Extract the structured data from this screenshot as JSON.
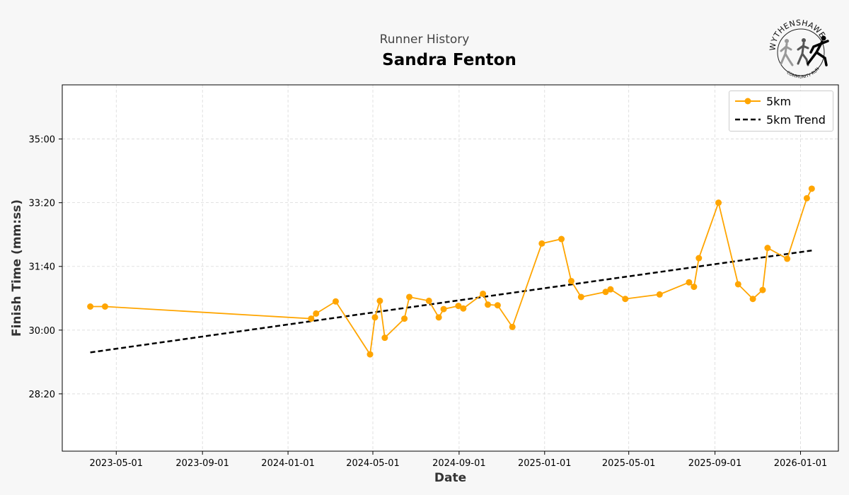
{
  "header": {
    "subtitle": "Runner History",
    "title": "Sandra Fenton"
  },
  "logo": {
    "name": "WYTHENSHAWE",
    "sub": "COMMUNITY RUN"
  },
  "colors": {
    "series": "#ffa500",
    "trend": "#000000",
    "background": "#f7f7f7",
    "plot_bg": "#ffffff"
  },
  "chart_data": {
    "type": "line",
    "xlabel": "Date",
    "ylabel": "Finish Time (mm:ss)",
    "grid": true,
    "legend_position": "top-right",
    "x_ticks": [
      "2023-05-01",
      "2023-09-01",
      "2024-01-01",
      "2024-05-01",
      "2024-09-01",
      "2025-01-01",
      "2025-05-01",
      "2025-09-01",
      "2026-01-01"
    ],
    "y_ticks": [
      "28:20",
      "30:00",
      "31:40",
      "33:20",
      "35:00"
    ],
    "y_tick_seconds": [
      1700,
      1800,
      1900,
      2000,
      2100
    ],
    "ylim_seconds": [
      1610,
      2185
    ],
    "xlim": [
      "2023-02-13",
      "2026-02-24"
    ],
    "series": [
      {
        "name": "5km",
        "style": "solid-markers",
        "x": [
          "2023-03-25",
          "2023-04-15",
          "2024-02-03",
          "2024-02-10",
          "2024-03-09",
          "2024-04-27",
          "2024-05-04",
          "2024-05-11",
          "2024-05-18",
          "2024-06-15",
          "2024-06-22",
          "2024-07-20",
          "2024-08-03",
          "2024-08-10",
          "2024-08-31",
          "2024-09-07",
          "2024-10-05",
          "2024-10-12",
          "2024-10-26",
          "2024-11-16",
          "2024-12-28",
          "2025-01-25",
          "2025-02-08",
          "2025-02-22",
          "2025-03-29",
          "2025-04-05",
          "2025-04-26",
          "2025-06-14",
          "2025-07-26",
          "2025-08-02",
          "2025-08-09",
          "2025-09-06",
          "2025-10-04",
          "2025-10-25",
          "2025-11-08",
          "2025-11-15",
          "2025-12-13",
          "2026-01-10",
          "2026-01-17"
        ],
        "y": [
          "30:37",
          "30:37",
          "30:18",
          "30:26",
          "30:45",
          "29:22",
          "30:20",
          "30:46",
          "29:48",
          "30:18",
          "30:52",
          "30:46",
          "30:20",
          "30:33",
          "30:38",
          "30:34",
          "30:57",
          "30:40",
          "30:39",
          "30:05",
          "32:16",
          "32:23",
          "31:17",
          "30:52",
          "31:00",
          "31:04",
          "30:49",
          "30:56",
          "31:15",
          "31:08",
          "31:53",
          "33:20",
          "31:12",
          "30:49",
          "31:03",
          "32:09",
          "31:52",
          "33:27",
          "33:42"
        ]
      },
      {
        "name": "5km Trend",
        "style": "dashed",
        "x": [
          "2023-03-25",
          "2026-01-17"
        ],
        "y": [
          "29:25",
          "32:05"
        ]
      }
    ]
  }
}
